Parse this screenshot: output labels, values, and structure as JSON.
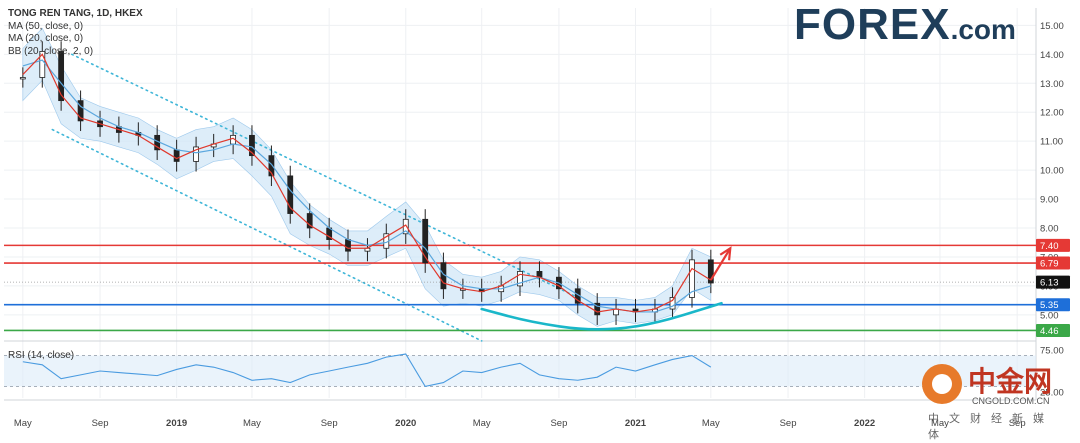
{
  "legend": {
    "title": "TONG REN TANG, 1D, HKEX",
    "ma50": "MA (50, close, 0)",
    "ma20": "MA (20, close, 0)",
    "bb": "BB (20, close, 2, 0)"
  },
  "brand": {
    "name": "FOREX",
    "tld": ".com"
  },
  "rsi_label": "RSI (14, close)",
  "watermark": {
    "cn": "中金网",
    "site": "CNGOLD.COM.CN",
    "sub": "中文财经新媒体"
  },
  "colors": {
    "candle": "#222222",
    "ma50": "#5ba7de",
    "ma20": "#e0382c",
    "bb_fill": "#cfe5f6",
    "channel": "#3fb6d8",
    "red_line": "#e53935",
    "blue_line": "#1e6fd9",
    "green_line": "#3ba848",
    "curve": "#1ab7c9",
    "arrow": "#e53935",
    "rsi": "#4a9be0",
    "rsi_band": "#dcebf8"
  },
  "chart_data": [
    {
      "type": "line",
      "title": "TONG REN TANG, 1D, HKEX",
      "series": [
        {
          "name": "price (close)",
          "kind": "candles",
          "x": [
            "2018-05",
            "2018-06",
            "2018-07",
            "2018-08",
            "2018-09",
            "2018-10",
            "2018-11",
            "2018-12",
            "2019-01",
            "2019-02",
            "2019-03",
            "2019-04",
            "2019-05",
            "2019-06",
            "2019-07",
            "2019-08",
            "2019-09",
            "2019-10",
            "2019-11",
            "2019-12",
            "2020-01",
            "2020-02",
            "2020-03",
            "2020-04",
            "2020-05",
            "2020-06",
            "2020-07",
            "2020-08",
            "2020-09",
            "2020-10",
            "2020-11",
            "2020-12",
            "2021-01",
            "2021-02",
            "2021-03",
            "2021-04",
            "2021-05"
          ],
          "values": [
            13.2,
            14.1,
            12.4,
            11.7,
            11.5,
            11.3,
            11.2,
            10.7,
            10.3,
            10.8,
            10.9,
            11.2,
            10.5,
            9.8,
            8.5,
            8.0,
            7.6,
            7.2,
            7.3,
            7.8,
            8.3,
            6.8,
            5.9,
            5.9,
            5.8,
            6.0,
            6.5,
            6.3,
            5.9,
            5.4,
            5.0,
            5.2,
            5.1,
            5.2,
            5.6,
            6.9,
            6.1
          ]
        },
        {
          "name": "MA (50, close, 0)",
          "kind": "line",
          "values": [
            13.6,
            13.8,
            13.0,
            12.2,
            11.8,
            11.5,
            11.3,
            11.0,
            10.7,
            10.6,
            10.7,
            10.9,
            10.8,
            10.2,
            9.3,
            8.6,
            8.0,
            7.6,
            7.4,
            7.5,
            7.9,
            7.3,
            6.4,
            6.0,
            5.9,
            5.9,
            6.1,
            6.3,
            6.1,
            5.7,
            5.3,
            5.2,
            5.1,
            5.1,
            5.3,
            5.8,
            6.0
          ]
        },
        {
          "name": "MA (20, close, 0)",
          "kind": "line",
          "values": [
            13.3,
            14.0,
            12.6,
            11.8,
            11.6,
            11.4,
            11.2,
            10.8,
            10.4,
            10.7,
            10.9,
            11.1,
            10.6,
            9.9,
            8.7,
            8.1,
            7.7,
            7.3,
            7.3,
            7.7,
            8.1,
            7.0,
            6.1,
            5.9,
            5.8,
            6.0,
            6.4,
            6.3,
            6.0,
            5.5,
            5.1,
            5.2,
            5.1,
            5.2,
            5.5,
            6.6,
            6.2
          ]
        },
        {
          "name": "BB (20, close, 2, 0)",
          "kind": "band",
          "upper": [
            14.2,
            14.9,
            13.6,
            12.5,
            12.2,
            12.0,
            11.8,
            11.4,
            11.1,
            11.4,
            11.5,
            11.8,
            11.4,
            10.7,
            9.6,
            8.8,
            8.3,
            7.9,
            7.9,
            8.4,
            8.9,
            8.1,
            6.9,
            6.4,
            6.3,
            6.5,
            7.0,
            6.9,
            6.5,
            6.0,
            5.6,
            5.6,
            5.5,
            5.6,
            6.0,
            7.3,
            7.0
          ],
          "lower": [
            12.4,
            13.1,
            11.6,
            11.1,
            11.0,
            10.8,
            10.6,
            10.2,
            9.7,
            10.0,
            10.3,
            10.4,
            9.8,
            9.1,
            7.8,
            7.4,
            7.1,
            6.7,
            6.7,
            7.0,
            7.3,
            5.9,
            5.3,
            5.4,
            5.3,
            5.5,
            5.8,
            5.7,
            5.5,
            5.0,
            4.6,
            4.8,
            4.7,
            4.8,
            5.0,
            5.9,
            5.5
          ]
        }
      ],
      "y_ticks": [
        5.0,
        6.0,
        7.0,
        8.0,
        9.0,
        10.0,
        11.0,
        12.0,
        13.0,
        14.0,
        15.0
      ],
      "y_tick_labels": [
        "5.00",
        "6.00",
        "7.00",
        "8.00",
        "9.00",
        "10.00",
        "11.00",
        "12.00",
        "13.00",
        "14.00",
        "15.00"
      ],
      "ylim": [
        4.2,
        15.6
      ],
      "x_tick_labels": [
        "May",
        "Sep",
        "2019",
        "May",
        "Sep",
        "2020",
        "May",
        "Sep",
        "2021",
        "May",
        "Sep",
        "2022",
        "May",
        "Sep"
      ],
      "x_tick_dates": [
        "2018-05",
        "2018-09",
        "2019-01",
        "2019-05",
        "2019-09",
        "2020-01",
        "2020-05",
        "2020-09",
        "2021-01",
        "2021-05",
        "2021-09",
        "2022-01",
        "2022-05",
        "2022-09"
      ],
      "xlim": [
        "2018-04-15",
        "2022-10-15"
      ],
      "levels": [
        {
          "value": 7.4,
          "label": "7.40",
          "color": "red"
        },
        {
          "value": 6.79,
          "label": "6.79",
          "color": "red"
        },
        {
          "value": 6.13,
          "label": "6.13",
          "color": "last"
        },
        {
          "value": 5.35,
          "label": "5.35",
          "color": "blue"
        },
        {
          "value": 4.46,
          "label": "4.46",
          "color": "green"
        }
      ],
      "channel": {
        "upper": [
          [
            "2018-08-01",
            14.0
          ],
          [
            "2020-10-15",
            5.6
          ]
        ],
        "lower": [
          [
            "2018-07-01",
            11.4
          ],
          [
            "2020-05-15",
            4.1
          ]
        ]
      },
      "rounding_bottom": [
        [
          "2020-05-15",
          5.2
        ],
        [
          "2020-08-01",
          4.75
        ],
        [
          "2020-11-01",
          4.45
        ],
        [
          "2021-02-01",
          4.6
        ],
        [
          "2021-06-01",
          5.4
        ]
      ],
      "target_arrow": [
        [
          "2021-05-15",
          6.2
        ],
        [
          "2021-06-15",
          7.3
        ]
      ],
      "grid": true
    },
    {
      "type": "line",
      "title": "RSI (14, close)",
      "series": [
        {
          "name": "RSI",
          "x": [
            "2018-05",
            "2018-06",
            "2018-07",
            "2018-08",
            "2018-09",
            "2018-10",
            "2018-11",
            "2018-12",
            "2019-01",
            "2019-02",
            "2019-03",
            "2019-04",
            "2019-05",
            "2019-06",
            "2019-07",
            "2019-08",
            "2019-09",
            "2019-10",
            "2019-11",
            "2019-12",
            "2020-01",
            "2020-02",
            "2020-03",
            "2020-04",
            "2020-05",
            "2020-06",
            "2020-07",
            "2020-08",
            "2020-09",
            "2020-10",
            "2020-11",
            "2020-12",
            "2021-01",
            "2021-02",
            "2021-03",
            "2021-04",
            "2021-05"
          ],
          "values": [
            62,
            58,
            40,
            45,
            50,
            48,
            46,
            44,
            52,
            58,
            55,
            48,
            38,
            40,
            35,
            45,
            50,
            55,
            60,
            68,
            72,
            30,
            35,
            50,
            48,
            55,
            60,
            45,
            40,
            38,
            42,
            55,
            50,
            58,
            65,
            70,
            55
          ]
        }
      ],
      "y_tick_labels": [
        "25.00",
        "75.00"
      ],
      "bands": [
        30,
        70
      ],
      "ylim": [
        15,
        85
      ]
    }
  ]
}
